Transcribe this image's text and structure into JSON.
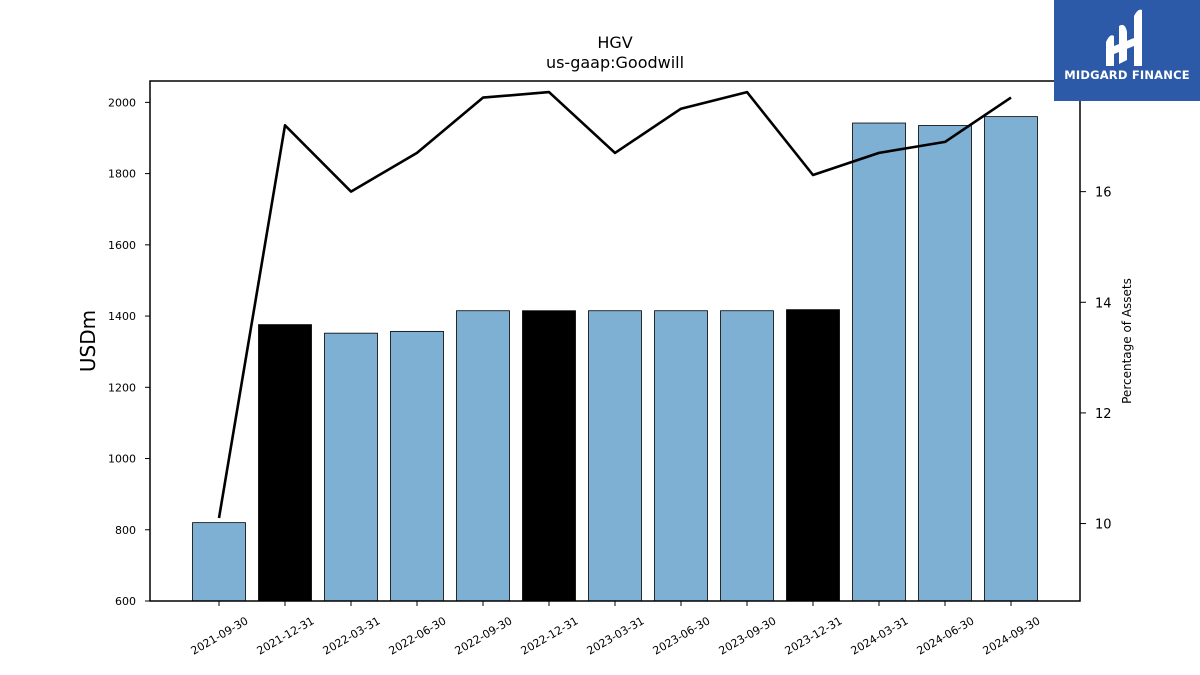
{
  "brand": {
    "name": "MIDGARD FINANCE",
    "bg_color": "#2c5aa8"
  },
  "chart_data": {
    "type": "bar",
    "title": "HGV",
    "subtitle": "us-gaap:Goodwill",
    "ylabel": "USDm",
    "y2label": "Percentage of Assets",
    "ylim": [
      600,
      2060
    ],
    "y2lim": [
      8.6,
      18.0
    ],
    "yticks": [
      600,
      800,
      1000,
      1200,
      1400,
      1600,
      1800,
      2000
    ],
    "y2ticks": [
      10,
      12,
      14,
      16
    ],
    "categories": [
      "2021-09-30",
      "2021-12-31",
      "2022-03-31",
      "2022-06-30",
      "2022-09-30",
      "2022-12-31",
      "2023-03-31",
      "2023-06-30",
      "2023-09-30",
      "2023-12-31",
      "2024-03-31",
      "2024-06-30",
      "2024-09-30"
    ],
    "series": [
      {
        "values": [
          820,
          1376,
          1352,
          1357,
          1415,
          1415,
          1415,
          1415,
          1415,
          1418,
          1942,
          1935,
          1960
        ],
        "colors": [
          "#7eb0d3",
          "#000000",
          "#7eb0d3",
          "#7eb0d3",
          "#7eb0d3",
          "#000000",
          "#7eb0d3",
          "#7eb0d3",
          "#7eb0d3",
          "#000000",
          "#7eb0d3",
          "#7eb0d3",
          "#7eb0d3"
        ]
      },
      {
        "type": "line",
        "axis": "right",
        "color": "#000000",
        "values": [
          10.1,
          17.2,
          16.0,
          16.7,
          17.7,
          17.8,
          16.7,
          17.5,
          17.8,
          16.3,
          16.7,
          16.9,
          17.7
        ]
      }
    ],
    "grid": false
  }
}
